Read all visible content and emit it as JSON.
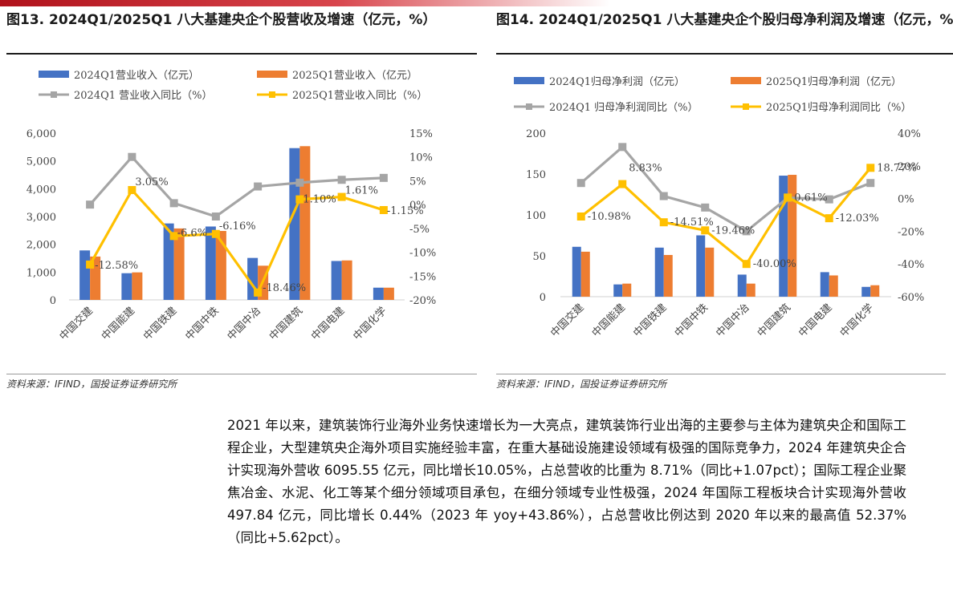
{
  "colors": {
    "accent_bar": "#c0161f",
    "blue": "#4472c4",
    "orange": "#ed7d31",
    "gray": "#a5a5a5",
    "yellow": "#ffc000"
  },
  "chart1": {
    "title": "图13. 2024Q1/2025Q1 八大基建央企个股营收及增速（亿元，%）",
    "source": "资料来源：IFIND，国投证券证券研究所",
    "chart_data": {
      "type": "bar",
      "categories": [
        "中国交建",
        "中国能建",
        "中国铁建",
        "中国中铁",
        "中国中冶",
        "中国建筑",
        "中国电建",
        "中国化学"
      ],
      "series": [
        {
          "name": "2024Q1营业收入（亿元）",
          "type": "bar",
          "axis": "left",
          "values": [
            1780,
            960,
            2750,
            2640,
            1510,
            5460,
            1400,
            440
          ]
        },
        {
          "name": "2025Q1营业收入（亿元）",
          "type": "bar",
          "axis": "left",
          "values": [
            1560,
            990,
            2570,
            2480,
            1230,
            5530,
            1420,
            440
          ]
        },
        {
          "name": "2024Q1 营业收入同比（%）",
          "type": "line",
          "axis": "right",
          "values": [
            0.0,
            10.0,
            0.3,
            -2.5,
            3.8,
            4.6,
            5.2,
            5.6
          ]
        },
        {
          "name": "2025Q1营业收入同比（%）",
          "type": "line",
          "axis": "right",
          "values": [
            -12.58,
            3.05,
            -6.6,
            -6.16,
            -18.46,
            1.1,
            1.61,
            -1.15
          ]
        }
      ],
      "data_labels": [
        "-12.58%",
        "3.05%",
        "-6.6%",
        "-6.16%",
        "-18.46%",
        "1.10%",
        "1.61%",
        "-1.15%"
      ],
      "left_ticks": [
        "6,000",
        "5,000",
        "4,000",
        "3,000",
        "2,000",
        "1,000",
        "0"
      ],
      "right_ticks": [
        "15%",
        "10%",
        "5%",
        "0%",
        "-5%",
        "-10%",
        "-15%",
        "-20%"
      ],
      "ylim_left": [
        0,
        6000
      ],
      "ylim_right": [
        -20,
        15
      ],
      "grid": false,
      "legend": "top"
    }
  },
  "chart2": {
    "title": "图14. 2024Q1/2025Q1 八大基建央企个股归母净利润及增速（亿元，%）",
    "source": "资料来源：IFIND，国投证券证券研究所",
    "chart_data": {
      "type": "bar",
      "categories": [
        "中国交建",
        "中国能建",
        "中国铁建",
        "中国中铁",
        "中国中冶",
        "中国建筑",
        "中国电建",
        "中国化学"
      ],
      "series": [
        {
          "name": "2024Q1归母净利润（亿元）",
          "type": "bar",
          "axis": "left",
          "values": [
            61,
            15,
            60,
            75,
            27,
            148,
            30,
            12
          ]
        },
        {
          "name": "2025Q1归母净利润（亿元）",
          "type": "bar",
          "axis": "left",
          "values": [
            55,
            16,
            51,
            60,
            16,
            149,
            26,
            14
          ]
        },
        {
          "name": "2024Q1 归母净利润同比（%）",
          "type": "line",
          "axis": "right",
          "values": [
            9.5,
            31.5,
            1.5,
            -5.5,
            -20.0,
            0.5,
            -0.5,
            9.5
          ]
        },
        {
          "name": "2025Q1归母净利润同比（%）",
          "type": "line",
          "axis": "right",
          "values": [
            -10.98,
            8.83,
            -14.51,
            -19.46,
            -40.0,
            0.61,
            -12.03,
            18.77
          ]
        }
      ],
      "data_labels": [
        "-10.98%",
        "8.83%",
        "-14.51%",
        "-19.46%",
        "-40.00%",
        "0.61%",
        "-12.03%",
        "18.77%"
      ],
      "left_ticks": [
        "200",
        "150",
        "100",
        "50",
        "0"
      ],
      "right_ticks": [
        "40%",
        "20%",
        "0%",
        "-20%",
        "-40%",
        "-60%"
      ],
      "ylim_left": [
        0,
        200
      ],
      "ylim_right": [
        -60,
        40
      ],
      "grid": false,
      "legend": "top"
    }
  },
  "paragraph": "2021 年以来，建筑装饰行业海外业务快速增长为一大亮点，建筑装饰行业出海的主要参与主体为建筑央企和国际工程企业，大型建筑央企海外项目实施经验丰富，在重大基础设施建设领域有极强的国际竞争力，2024 年建筑央企合计实现海外营收 6095.55 亿元，同比增长10.05%，占总营收的比重为 8.71%（同比+1.07pct）；国际工程企业聚焦冶金、水泥、化工等某个细分领域项目承包，在细分领域专业性极强，2024 年国际工程板块合计实现海外营收497.84 亿元，同比增长 0.44%（2023 年 yoy+43.86%），占总营收比例达到 2020 年以来的最高值 52.37%（同比+5.62pct）。"
}
